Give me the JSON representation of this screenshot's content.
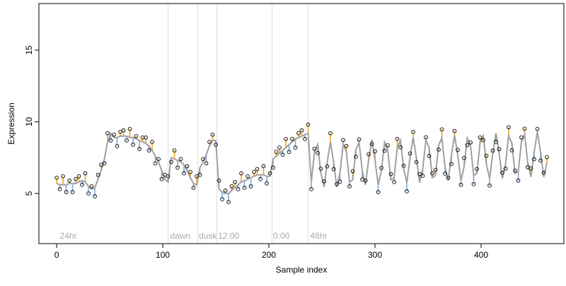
{
  "chart_data": {
    "type": "scatter",
    "xlabel": "Sample index",
    "ylabel": "Expression",
    "xlim": [
      -16.7,
      478
    ],
    "ylim": [
      1.5,
      18.25
    ],
    "xticks": [
      0,
      100,
      200,
      300,
      400
    ],
    "yticks": [
      5,
      10,
      15
    ],
    "point_color": "#000000",
    "fit_color": "#a0a0a0",
    "above_color": "#f5a623",
    "below_color": "#7fa7de",
    "divider_color": "#dddddd",
    "vlines": [
      105,
      133,
      151,
      203,
      237
    ],
    "annotations": [
      {
        "x": 3,
        "label": "24hr"
      },
      {
        "x": 107,
        "label": "dawn"
      },
      {
        "x": 134,
        "label": "dusk"
      },
      {
        "x": 152,
        "label": "12:00"
      },
      {
        "x": 204,
        "label": "0:00"
      },
      {
        "x": 239,
        "label": "48hr"
      }
    ],
    "x": [
      0,
      3,
      6,
      9,
      12,
      15,
      18,
      21,
      24,
      27,
      30,
      33,
      36,
      39,
      42,
      45,
      48,
      51,
      54,
      57,
      60,
      63,
      66,
      69,
      72,
      75,
      78,
      81,
      84,
      87,
      90,
      93,
      96,
      99,
      102,
      105,
      108,
      111,
      114,
      117,
      120,
      123,
      126,
      129,
      132,
      135,
      138,
      141,
      144,
      147,
      150,
      153,
      156,
      159,
      162,
      165,
      168,
      171,
      174,
      177,
      180,
      183,
      186,
      189,
      192,
      195,
      198,
      201,
      204,
      207,
      210,
      213,
      216,
      219,
      222,
      225,
      228,
      231,
      234,
      237,
      240,
      243,
      246,
      249,
      252,
      255,
      258,
      261,
      264,
      267,
      270,
      273,
      276,
      279,
      282,
      285,
      288,
      291,
      294,
      297,
      300,
      303,
      306,
      309,
      312,
      315,
      318,
      321,
      324,
      327,
      330,
      333,
      336,
      339,
      342,
      345,
      348,
      351,
      354,
      357,
      360,
      363,
      366,
      369,
      372,
      375,
      378,
      381,
      384,
      387,
      390,
      393,
      396,
      399,
      402,
      405,
      408,
      411,
      414,
      417,
      420,
      423,
      426,
      429,
      432,
      435,
      438,
      441,
      444,
      447,
      450,
      453,
      456,
      459,
      462
    ],
    "values": [
      6.1,
      5.3,
      6.2,
      5.1,
      5.9,
      5.1,
      6.0,
      6.2,
      5.6,
      6.4,
      5.0,
      5.5,
      4.8,
      6.3,
      7.0,
      7.1,
      9.2,
      8.7,
      9.1,
      8.3,
      9.3,
      9.4,
      8.7,
      9.5,
      8.4,
      9.0,
      8.1,
      8.9,
      8.9,
      8.0,
      8.6,
      7.1,
      7.4,
      6.0,
      6.3,
      6.2,
      7.2,
      8.0,
      6.8,
      7.4,
      6.4,
      6.9,
      6.5,
      5.4,
      6.2,
      6.3,
      7.4,
      7.1,
      8.6,
      9.1,
      8.4,
      5.9,
      4.6,
      5.2,
      4.4,
      5.5,
      5.8,
      5.3,
      6.4,
      5.4,
      6.2,
      5.5,
      6.5,
      6.7,
      6.0,
      6.9,
      5.7,
      6.4,
      6.8,
      7.9,
      8.2,
      7.7,
      8.8,
      7.9,
      8.8,
      8.2,
      9.2,
      9.4,
      8.8,
      9.8,
      5.3,
      8.11,
      7.82,
      6.73,
      5.85,
      6.89,
      9.2,
      6.69,
      5.65,
      5.83,
      8.72,
      8.31,
      5.5,
      6.55,
      7.56,
      8.77,
      5.98,
      5.9,
      7.74,
      8.45,
      7.94,
      5.1,
      6.78,
      7.97,
      8.36,
      6.35,
      5.8,
      8.81,
      8.22,
      6.93,
      5.15,
      7.79,
      9.3,
      7.19,
      6.35,
      6.23,
      8.92,
      7.61,
      6.4,
      6.65,
      8.06,
      9.47,
      6.38,
      6.1,
      7.04,
      9.35,
      8.04,
      5.6,
      7.48,
      8.37,
      8.56,
      5.65,
      6.7,
      8.91,
      8.72,
      7.63,
      5.55,
      7.99,
      8.6,
      8.09,
      6.45,
      6.73,
      9.62,
      8.01,
      6.6,
      5.9,
      8.91,
      9.52,
      6.83,
      6.75,
      7.39,
      9.5,
      7.29,
      6.45,
      7.53
    ],
    "fitted": [
      5.7,
      5.6,
      5.6,
      5.6,
      5.7,
      5.7,
      5.7,
      5.8,
      5.9,
      5.8,
      5.5,
      5.3,
      5.4,
      6.0,
      6.6,
      7.4,
      8.6,
      9.2,
      8.9,
      8.9,
      9.0,
      9.0,
      9.0,
      8.9,
      8.9,
      8.8,
      8.7,
      8.6,
      8.5,
      8.3,
      8.0,
      7.6,
      7.2,
      6.6,
      6.0,
      5.8,
      7.5,
      7.4,
      7.3,
      7.2,
      7.0,
      6.6,
      6.1,
      5.7,
      5.6,
      6.8,
      7.2,
      7.7,
      8.3,
      8.7,
      8.7,
      5.3,
      5.1,
      5.0,
      5.0,
      5.2,
      5.4,
      5.6,
      5.8,
      5.9,
      6.0,
      6.1,
      6.2,
      6.3,
      6.3,
      6.3,
      6.2,
      6.2,
      7.4,
      7.6,
      7.8,
      8.0,
      8.2,
      8.4,
      8.6,
      8.8,
      8.9,
      9.0,
      9.1,
      9.2,
      5.8,
      7.91,
      8.42,
      6.43,
      5.45,
      7.19,
      8.6,
      7.19,
      5.45,
      6.43,
      8.42,
      7.91,
      5.8,
      5.95,
      8.06,
      8.57,
      6.58,
      5.6,
      7.34,
      8.75,
      7.34,
      5.6,
      6.58,
      8.57,
      8.06,
      5.95,
      6.1,
      8.21,
      8.72,
      6.73,
      5.75,
      7.49,
      8.9,
      7.49,
      5.75,
      6.73,
      8.72,
      8.21,
      6.1,
      6.25,
      8.36,
      8.87,
      6.88,
      5.9,
      7.64,
      9.05,
      7.64,
      5.9,
      6.88,
      8.87,
      8.36,
      6.25,
      6.4,
      8.51,
      9.02,
      7.03,
      6.05,
      7.79,
      9.2,
      7.79,
      6.05,
      7.03,
      9.02,
      8.51,
      6.4,
      6.5,
      8.61,
      9.12,
      7.13,
      6.15,
      7.89,
      9.3,
      7.89,
      6.15,
      7.13
    ]
  }
}
